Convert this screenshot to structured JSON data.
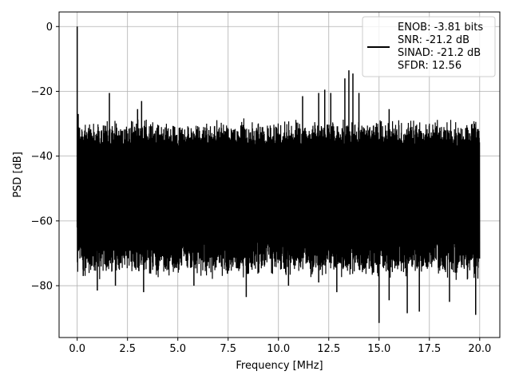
{
  "chart_data": {
    "type": "line",
    "title": "",
    "xlabel": "Frequency [MHz]",
    "ylabel": "PSD [dB]",
    "xlim": [
      -0.9,
      21.0
    ],
    "ylim": [
      -96,
      4.5
    ],
    "xticks": [
      0.0,
      2.5,
      5.0,
      7.5,
      10.0,
      12.5,
      15.0,
      17.5,
      20.0
    ],
    "xtick_labels": [
      "0.0",
      "2.5",
      "5.0",
      "7.5",
      "10.0",
      "12.5",
      "15.0",
      "17.5",
      "20.0"
    ],
    "yticks": [
      0,
      -20,
      -40,
      -60,
      -80
    ],
    "ytick_labels": [
      "0",
      "−20",
      "−40",
      "−60",
      "−80"
    ],
    "grid": true,
    "legend_position": "top-right",
    "series_color": "#000000",
    "legend": {
      "lines": [
        "ENOB: -3.81 bits",
        "SNR: -21.2 dB",
        "SINAD: -21.2 dB",
        "SFDR: 12.56"
      ]
    },
    "series": [
      {
        "name": "ENOB: -3.81 bits\nSNR: -21.2 dB\nSINAD: -21.2 dB\nSFDR: 12.56",
        "x_range": [
          0.0,
          20.0
        ],
        "noise_ceiling_db": -28,
        "noise_floor_typical_db": -70,
        "peaks": [
          {
            "x": 0.0,
            "y": 0.0
          },
          {
            "x": 0.05,
            "y": -27.0
          },
          {
            "x": 1.6,
            "y": -20.5
          },
          {
            "x": 3.0,
            "y": -25.5
          },
          {
            "x": 3.2,
            "y": -23.0
          },
          {
            "x": 11.2,
            "y": -21.5
          },
          {
            "x": 12.0,
            "y": -20.5
          },
          {
            "x": 12.3,
            "y": -19.5
          },
          {
            "x": 12.6,
            "y": -20.5
          },
          {
            "x": 13.3,
            "y": -16.0
          },
          {
            "x": 13.5,
            "y": -13.5
          },
          {
            "x": 13.7,
            "y": -14.5
          },
          {
            "x": 14.0,
            "y": -20.5
          },
          {
            "x": 15.5,
            "y": -25.5
          }
        ],
        "troughs": [
          {
            "x": 0.3,
            "y": -77.0
          },
          {
            "x": 1.0,
            "y": -81.5
          },
          {
            "x": 1.9,
            "y": -80.0
          },
          {
            "x": 3.3,
            "y": -82.0
          },
          {
            "x": 5.8,
            "y": -80.0
          },
          {
            "x": 8.4,
            "y": -83.5
          },
          {
            "x": 10.5,
            "y": -80.0
          },
          {
            "x": 12.0,
            "y": -79.0
          },
          {
            "x": 12.9,
            "y": -82.0
          },
          {
            "x": 15.0,
            "y": -91.5
          },
          {
            "x": 15.5,
            "y": -84.5
          },
          {
            "x": 16.4,
            "y": -88.5
          },
          {
            "x": 17.0,
            "y": -88.0
          },
          {
            "x": 18.5,
            "y": -85.0
          },
          {
            "x": 19.8,
            "y": -89.0
          }
        ]
      }
    ]
  }
}
